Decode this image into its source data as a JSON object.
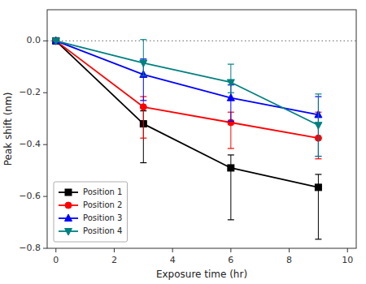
{
  "chart_data": {
    "type": "line",
    "x_label": "Exposure time (hr)",
    "y_label": "Peak shift (nm)",
    "x": [
      0,
      3,
      6,
      9
    ],
    "series": [
      {
        "name": "Position 1",
        "color": "black",
        "marker": "square",
        "line_style": "solid",
        "values": [
          0.0,
          -0.32,
          -0.49,
          -0.565
        ],
        "error_low": [
          0.0,
          0.15,
          0.2,
          0.2
        ],
        "error_high": [
          0.0,
          0.05,
          0.05,
          0.05
        ]
      },
      {
        "name": "Position 2",
        "color": "red",
        "marker": "circle",
        "line_style": "solid",
        "values": [
          0.0,
          -0.255,
          -0.315,
          -0.375
        ],
        "error_low": [
          0.0,
          0.12,
          0.1,
          0.08
        ],
        "error_high": [
          0.0,
          0.04,
          0.04,
          0.1
        ]
      },
      {
        "name": "Position 3",
        "color": "blue",
        "marker": "triangle-up",
        "line_style": "solid",
        "values": [
          0.0,
          -0.13,
          -0.22,
          -0.285
        ],
        "error_low": [
          0.0,
          0.1,
          0.09,
          0.16
        ],
        "error_high": [
          0.0,
          0.06,
          0.05,
          0.07
        ]
      },
      {
        "name": "Position 4",
        "color": "#008080",
        "marker": "triangle-down",
        "line_style": "solid",
        "values": [
          0.0,
          -0.085,
          -0.16,
          -0.325
        ],
        "error_low": [
          0.0,
          0.05,
          0.04,
          0.12
        ],
        "error_high": [
          0.0,
          0.09,
          0.07,
          0.12
        ]
      }
    ],
    "hline": 0.0,
    "xlim": [
      -0.3,
      10.3
    ],
    "ylim": [
      -0.8,
      0.12
    ],
    "xticks": [
      0,
      2,
      4,
      6,
      8,
      10
    ],
    "yticks": [
      {
        "value": 0.0,
        "label": "0.0"
      },
      {
        "value": -0.2,
        "label": "−0.2"
      },
      {
        "value": -0.4,
        "label": "−0.4"
      },
      {
        "value": -0.6,
        "label": "−0.6"
      },
      {
        "value": -0.8,
        "label": "−0.8"
      }
    ],
    "grid": false,
    "legend": "lower left"
  }
}
